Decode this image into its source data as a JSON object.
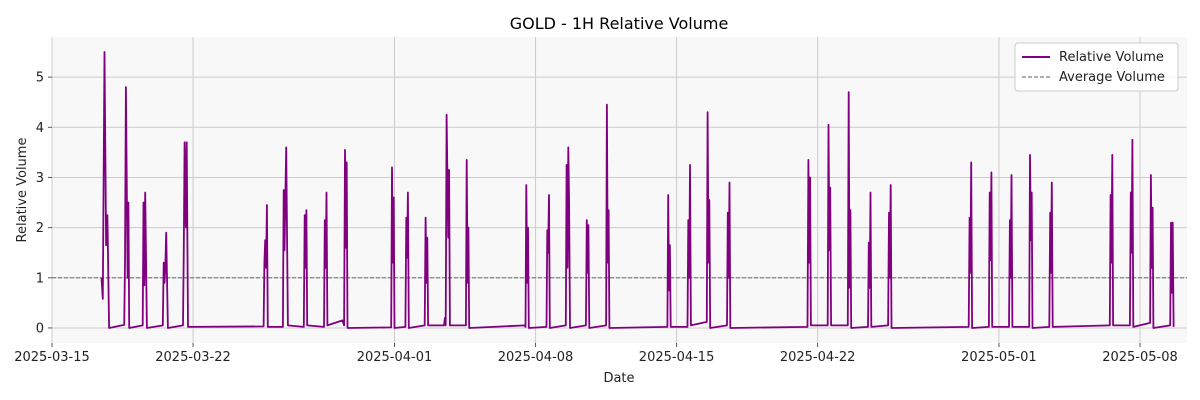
{
  "chart_data": {
    "type": "line",
    "title": "GOLD - 1H Relative Volume",
    "xlabel": "Date",
    "ylabel": "Relative Volume",
    "x_range": [
      "2025-03-15T00:00",
      "2025-05-10T08:00"
    ],
    "ylim": [
      -0.3,
      5.8
    ],
    "x_ticks": [
      "2025-03-15",
      "2025-03-22",
      "2025-04-01",
      "2025-04-08",
      "2025-04-15",
      "2025-04-22",
      "2025-05-01",
      "2025-05-08"
    ],
    "y_ticks": [
      0,
      1,
      2,
      3,
      4,
      5
    ],
    "grid": true,
    "legend_position": "top-right",
    "colors": {
      "series": "#800080",
      "average": "#808080",
      "plot_bg": "#f8f8f8",
      "grid": "#cccccc"
    },
    "series": [
      {
        "name": "Relative Volume",
        "style": "solid",
        "points": [
          [
            "2025-03-17T11:00",
            1.0
          ],
          [
            "2025-03-17T12:30",
            0.58
          ],
          [
            "2025-03-17T14:30",
            5.5
          ],
          [
            "2025-03-17T16:30",
            1.65
          ],
          [
            "2025-03-17T18:00",
            2.25
          ],
          [
            "2025-03-17T20:00",
            0.0
          ],
          [
            "2025-03-18T14:00",
            0.06
          ],
          [
            "2025-03-18T15:00",
            1.3
          ],
          [
            "2025-03-18T16:00",
            4.8
          ],
          [
            "2025-03-18T18:00",
            1.0
          ],
          [
            "2025-03-18T19:00",
            2.5
          ],
          [
            "2025-03-18T20:00",
            0.0
          ],
          [
            "2025-03-19T12:00",
            0.05
          ],
          [
            "2025-03-19T13:00",
            2.5
          ],
          [
            "2025-03-19T14:00",
            0.85
          ],
          [
            "2025-03-19T15:00",
            2.7
          ],
          [
            "2025-03-19T17:00",
            0.0
          ],
          [
            "2025-03-20T12:00",
            0.05
          ],
          [
            "2025-03-20T13:00",
            1.3
          ],
          [
            "2025-03-20T14:00",
            0.9
          ],
          [
            "2025-03-20T15:00",
            1.2
          ],
          [
            "2025-03-20T16:00",
            1.9
          ],
          [
            "2025-03-20T18:00",
            0.0
          ],
          [
            "2025-03-21T12:00",
            0.05
          ],
          [
            "2025-03-21T13:00",
            1.6
          ],
          [
            "2025-03-21T14:00",
            3.7
          ],
          [
            "2025-03-21T15:30",
            2.0
          ],
          [
            "2025-03-21T16:30",
            3.7
          ],
          [
            "2025-03-21T18:00",
            0.02
          ],
          [
            "2025-03-25T12:00",
            0.03
          ],
          [
            "2025-03-25T13:00",
            1.3
          ],
          [
            "2025-03-25T14:00",
            1.75
          ],
          [
            "2025-03-25T15:00",
            1.2
          ],
          [
            "2025-03-25T16:00",
            2.45
          ],
          [
            "2025-03-25T17:00",
            0.02
          ],
          [
            "2025-03-26T11:00",
            0.02
          ],
          [
            "2025-03-26T12:00",
            2.75
          ],
          [
            "2025-03-26T13:00",
            1.55
          ],
          [
            "2025-03-26T15:00",
            3.6
          ],
          [
            "2025-03-26T17:00",
            0.05
          ],
          [
            "2025-03-27T12:00",
            0.02
          ],
          [
            "2025-03-27T13:00",
            2.25
          ],
          [
            "2025-03-27T14:00",
            1.2
          ],
          [
            "2025-03-27T15:00",
            2.35
          ],
          [
            "2025-03-27T16:00",
            0.05
          ],
          [
            "2025-03-28T12:00",
            0.02
          ],
          [
            "2025-03-28T13:00",
            2.15
          ],
          [
            "2025-03-28T14:00",
            1.2
          ],
          [
            "2025-03-28T15:00",
            2.7
          ],
          [
            "2025-03-28T16:00",
            0.05
          ],
          [
            "2025-03-29T10:00",
            0.15
          ],
          [
            "2025-03-29T12:00",
            0.05
          ],
          [
            "2025-03-29T13:00",
            3.55
          ],
          [
            "2025-03-29T14:00",
            1.6
          ],
          [
            "2025-03-29T15:00",
            3.3
          ],
          [
            "2025-03-29T16:00",
            0.0
          ],
          [
            "2025-03-31T20:00",
            0.01
          ],
          [
            "2025-03-31T21:00",
            3.2
          ],
          [
            "2025-03-31T22:00",
            1.3
          ],
          [
            "2025-03-31T23:00",
            2.6
          ],
          [
            "2025-04-01T00:00",
            0.0
          ],
          [
            "2025-04-01T13:00",
            0.02
          ],
          [
            "2025-04-01T14:00",
            2.2
          ],
          [
            "2025-04-01T15:00",
            1.4
          ],
          [
            "2025-04-01T16:00",
            2.7
          ],
          [
            "2025-04-01T17:00",
            0.0
          ],
          [
            "2025-04-02T12:00",
            0.05
          ],
          [
            "2025-04-02T13:00",
            2.2
          ],
          [
            "2025-04-02T14:00",
            0.9
          ],
          [
            "2025-04-02T15:00",
            1.8
          ],
          [
            "2025-04-02T16:00",
            0.05
          ],
          [
            "2025-04-03T11:00",
            0.05
          ],
          [
            "2025-04-03T12:00",
            0.2
          ],
          [
            "2025-04-03T13:00",
            0.05
          ],
          [
            "2025-04-03T14:00",
            4.25
          ],
          [
            "2025-04-03T16:00",
            1.8
          ],
          [
            "2025-04-03T17:00",
            3.15
          ],
          [
            "2025-04-03T18:00",
            0.05
          ],
          [
            "2025-04-04T13:00",
            0.05
          ],
          [
            "2025-04-04T14:00",
            3.35
          ],
          [
            "2025-04-04T15:00",
            0.9
          ],
          [
            "2025-04-04T16:00",
            2.0
          ],
          [
            "2025-04-04T17:00",
            0.0
          ],
          [
            "2025-04-07T11:00",
            0.05
          ],
          [
            "2025-04-07T12:00",
            0.02
          ],
          [
            "2025-04-07T13:00",
            2.85
          ],
          [
            "2025-04-07T14:00",
            0.9
          ],
          [
            "2025-04-07T15:00",
            2.0
          ],
          [
            "2025-04-07T16:00",
            0.0
          ],
          [
            "2025-04-08T13:00",
            0.02
          ],
          [
            "2025-04-08T14:00",
            1.95
          ],
          [
            "2025-04-08T15:00",
            1.5
          ],
          [
            "2025-04-08T16:00",
            2.65
          ],
          [
            "2025-04-08T17:00",
            0.0
          ],
          [
            "2025-04-09T12:00",
            0.05
          ],
          [
            "2025-04-09T13:00",
            3.25
          ],
          [
            "2025-04-09T14:00",
            1.2
          ],
          [
            "2025-04-09T15:00",
            3.6
          ],
          [
            "2025-04-09T16:00",
            2.5
          ],
          [
            "2025-04-09T17:00",
            0.0
          ],
          [
            "2025-04-10T12:00",
            0.05
          ],
          [
            "2025-04-10T13:00",
            2.15
          ],
          [
            "2025-04-10T14:00",
            1.1
          ],
          [
            "2025-04-10T15:00",
            2.05
          ],
          [
            "2025-04-10T16:00",
            0.0
          ],
          [
            "2025-04-11T12:00",
            0.05
          ],
          [
            "2025-04-11T13:00",
            4.45
          ],
          [
            "2025-04-11T14:00",
            1.3
          ],
          [
            "2025-04-11T15:00",
            2.35
          ],
          [
            "2025-04-11T16:00",
            0.0
          ],
          [
            "2025-04-14T13:00",
            0.02
          ],
          [
            "2025-04-14T14:00",
            2.65
          ],
          [
            "2025-04-14T15:00",
            0.75
          ],
          [
            "2025-04-14T16:00",
            1.65
          ],
          [
            "2025-04-14T17:00",
            0.02
          ],
          [
            "2025-04-15T13:00",
            0.02
          ],
          [
            "2025-04-15T14:00",
            2.15
          ],
          [
            "2025-04-15T15:00",
            1.0
          ],
          [
            "2025-04-15T16:00",
            3.25
          ],
          [
            "2025-04-15T17:00",
            0.05
          ],
          [
            "2025-04-16T12:00",
            0.12
          ],
          [
            "2025-04-16T13:00",
            4.3
          ],
          [
            "2025-04-16T14:00",
            1.3
          ],
          [
            "2025-04-16T15:00",
            2.55
          ],
          [
            "2025-04-16T16:00",
            0.0
          ],
          [
            "2025-04-17T12:00",
            0.05
          ],
          [
            "2025-04-17T13:00",
            2.3
          ],
          [
            "2025-04-17T14:00",
            1.0
          ],
          [
            "2025-04-17T15:00",
            2.9
          ],
          [
            "2025-04-17T16:00",
            0.0
          ],
          [
            "2025-04-21T12:00",
            0.02
          ],
          [
            "2025-04-21T13:00",
            3.35
          ],
          [
            "2025-04-21T14:00",
            1.3
          ],
          [
            "2025-04-21T15:00",
            3.0
          ],
          [
            "2025-04-21T16:00",
            0.05
          ],
          [
            "2025-04-22T12:00",
            0.05
          ],
          [
            "2025-04-22T13:00",
            4.05
          ],
          [
            "2025-04-22T14:00",
            1.55
          ],
          [
            "2025-04-22T15:00",
            2.8
          ],
          [
            "2025-04-22T16:00",
            0.05
          ],
          [
            "2025-04-23T12:00",
            0.05
          ],
          [
            "2025-04-23T13:00",
            4.7
          ],
          [
            "2025-04-23T14:00",
            0.8
          ],
          [
            "2025-04-23T15:00",
            2.35
          ],
          [
            "2025-04-23T16:00",
            0.0
          ],
          [
            "2025-04-24T12:00",
            0.02
          ],
          [
            "2025-04-24T13:00",
            1.7
          ],
          [
            "2025-04-24T14:00",
            0.8
          ],
          [
            "2025-04-24T15:00",
            2.7
          ],
          [
            "2025-04-24T16:00",
            0.02
          ],
          [
            "2025-04-25T12:00",
            0.05
          ],
          [
            "2025-04-25T13:00",
            2.3
          ],
          [
            "2025-04-25T14:00",
            1.0
          ],
          [
            "2025-04-25T15:00",
            2.85
          ],
          [
            "2025-04-25T16:00",
            0.0
          ],
          [
            "2025-04-29T12:00",
            0.02
          ],
          [
            "2025-04-29T13:00",
            2.2
          ],
          [
            "2025-04-29T14:00",
            1.1
          ],
          [
            "2025-04-29T15:00",
            3.3
          ],
          [
            "2025-04-29T16:00",
            0.0
          ],
          [
            "2025-04-30T12:00",
            0.02
          ],
          [
            "2025-04-30T13:00",
            2.7
          ],
          [
            "2025-04-30T14:00",
            1.35
          ],
          [
            "2025-04-30T15:00",
            3.1
          ],
          [
            "2025-04-30T16:00",
            0.02
          ],
          [
            "2025-05-01T12:00",
            0.02
          ],
          [
            "2025-05-01T13:00",
            2.15
          ],
          [
            "2025-05-01T14:00",
            1.0
          ],
          [
            "2025-05-01T15:00",
            3.05
          ],
          [
            "2025-05-01T16:00",
            0.02
          ],
          [
            "2025-05-02T12:00",
            0.02
          ],
          [
            "2025-05-02T13:00",
            3.45
          ],
          [
            "2025-05-02T14:00",
            1.75
          ],
          [
            "2025-05-02T15:00",
            2.7
          ],
          [
            "2025-05-02T16:00",
            0.0
          ],
          [
            "2025-05-03T12:00",
            0.02
          ],
          [
            "2025-05-03T13:00",
            2.3
          ],
          [
            "2025-05-03T14:00",
            1.1
          ],
          [
            "2025-05-03T15:00",
            2.9
          ],
          [
            "2025-05-03T16:00",
            0.02
          ],
          [
            "2025-05-06T12:00",
            0.05
          ],
          [
            "2025-05-06T13:00",
            2.65
          ],
          [
            "2025-05-06T14:00",
            1.3
          ],
          [
            "2025-05-06T15:00",
            3.45
          ],
          [
            "2025-05-06T16:00",
            0.05
          ],
          [
            "2025-05-07T12:00",
            0.05
          ],
          [
            "2025-05-07T13:00",
            2.7
          ],
          [
            "2025-05-07T14:00",
            1.5
          ],
          [
            "2025-05-07T15:00",
            3.75
          ],
          [
            "2025-05-07T16:00",
            0.02
          ],
          [
            "2025-05-08T12:00",
            0.1
          ],
          [
            "2025-05-08T13:00",
            3.05
          ],
          [
            "2025-05-08T14:00",
            1.2
          ],
          [
            "2025-05-08T15:00",
            2.4
          ],
          [
            "2025-05-08T16:00",
            0.0
          ],
          [
            "2025-05-09T12:00",
            0.05
          ],
          [
            "2025-05-09T13:00",
            2.1
          ],
          [
            "2025-05-09T14:00",
            0.7
          ],
          [
            "2025-05-09T15:00",
            2.1
          ],
          [
            "2025-05-09T16:00",
            0.02
          ]
        ]
      },
      {
        "name": "Average Volume",
        "style": "dashed",
        "value": 1.0
      }
    ]
  }
}
